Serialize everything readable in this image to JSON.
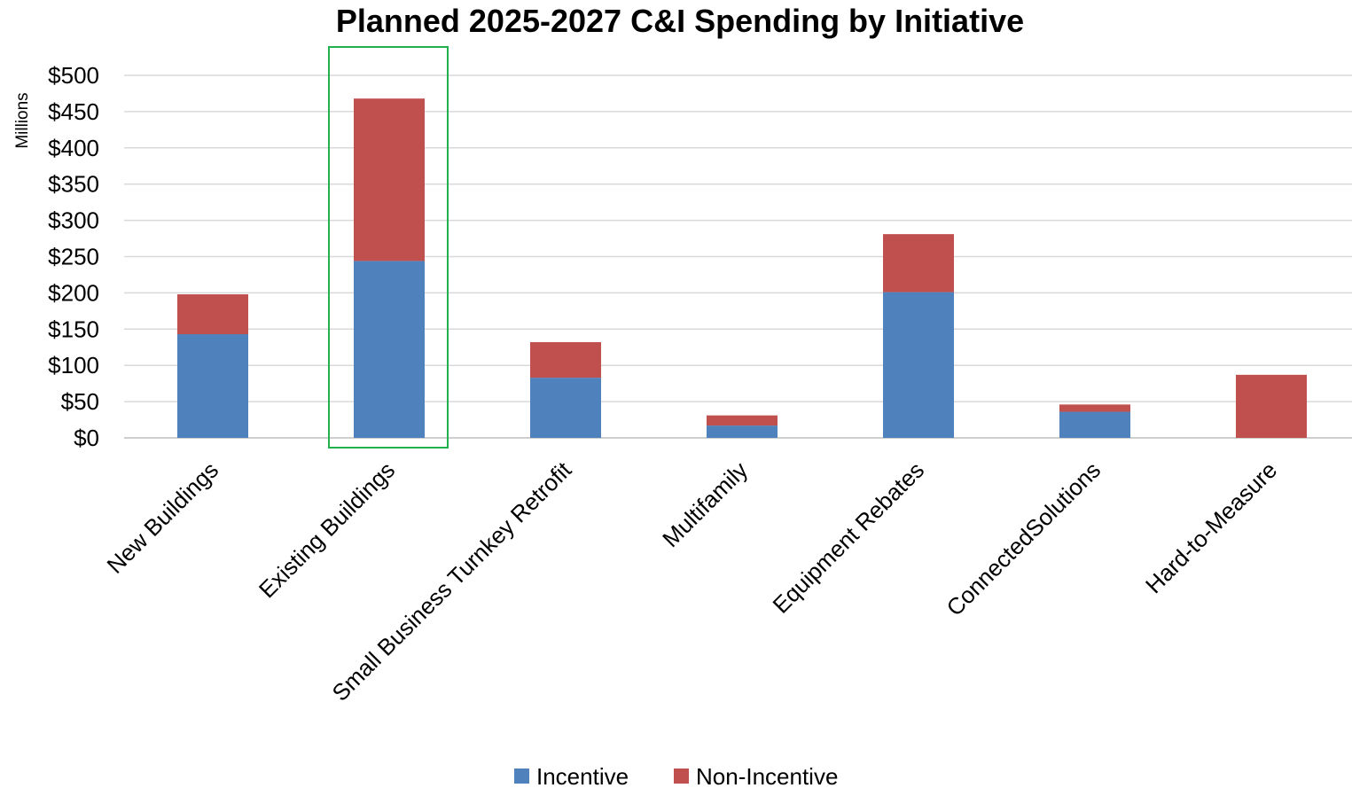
{
  "chart_data": {
    "type": "bar",
    "stacked": true,
    "title": "Planned 2025-2027 C&I Spending by Initiative",
    "xlabel": "",
    "ylabel": "",
    "y_unit_label": "Millions",
    "ylim": [
      0,
      500
    ],
    "yticks": [
      0,
      50,
      100,
      150,
      200,
      250,
      300,
      350,
      400,
      450,
      500
    ],
    "ytick_labels": [
      "$0",
      "$50",
      "$100",
      "$150",
      "$200",
      "$250",
      "$300",
      "$350",
      "$400",
      "$450",
      "$500"
    ],
    "categories": [
      "New Buildings",
      "Existing Buildings",
      "Small Business Turnkey Retrofit",
      "Multifamily",
      "Equipment Rebates",
      "ConnectedSolutions",
      "Hard-to-Measure"
    ],
    "series": [
      {
        "name": "Incentive",
        "color": "#4f81bd",
        "values": [
          143,
          244,
          83,
          17,
          201,
          36,
          0
        ]
      },
      {
        "name": "Non-Incentive",
        "color": "#c0504d",
        "values": [
          55,
          224,
          49,
          14,
          80,
          10,
          87
        ]
      }
    ],
    "highlight": {
      "category": "Existing Buildings",
      "color": "#22b14c"
    },
    "grid": true,
    "legend_position": "bottom"
  }
}
